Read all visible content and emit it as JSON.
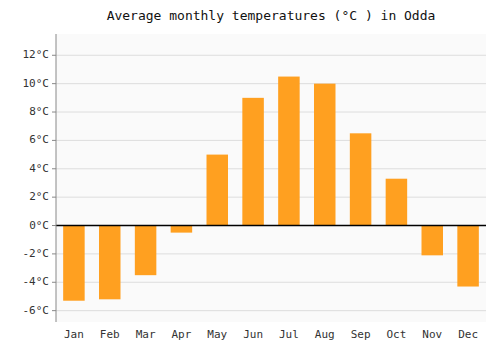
{
  "chart_data": {
    "type": "bar",
    "title": "Average monthly temperatures (°C ) in Odda",
    "categories": [
      "Jan",
      "Feb",
      "Mar",
      "Apr",
      "May",
      "Jun",
      "Jul",
      "Aug",
      "Sep",
      "Oct",
      "Nov",
      "Dec"
    ],
    "values": [
      -5.3,
      -5.2,
      -3.5,
      -0.5,
      5.0,
      9.0,
      10.5,
      10.0,
      6.5,
      3.3,
      -2.1,
      -4.3
    ],
    "color": "#FFA020",
    "ylim": [
      -6.8,
      13.5
    ],
    "yticks": [
      {
        "value": -6,
        "label": "-6°C"
      },
      {
        "value": -4,
        "label": "-4°C"
      },
      {
        "value": -2,
        "label": "-2°C"
      },
      {
        "value": 0,
        "label": "0°C"
      },
      {
        "value": 2,
        "label": "2°C"
      },
      {
        "value": 4,
        "label": "4°C"
      },
      {
        "value": 6,
        "label": "6°C"
      },
      {
        "value": 8,
        "label": "8°C"
      },
      {
        "value": 10,
        "label": "10°C"
      },
      {
        "value": 12,
        "label": "12°C"
      }
    ],
    "grid": true
  }
}
